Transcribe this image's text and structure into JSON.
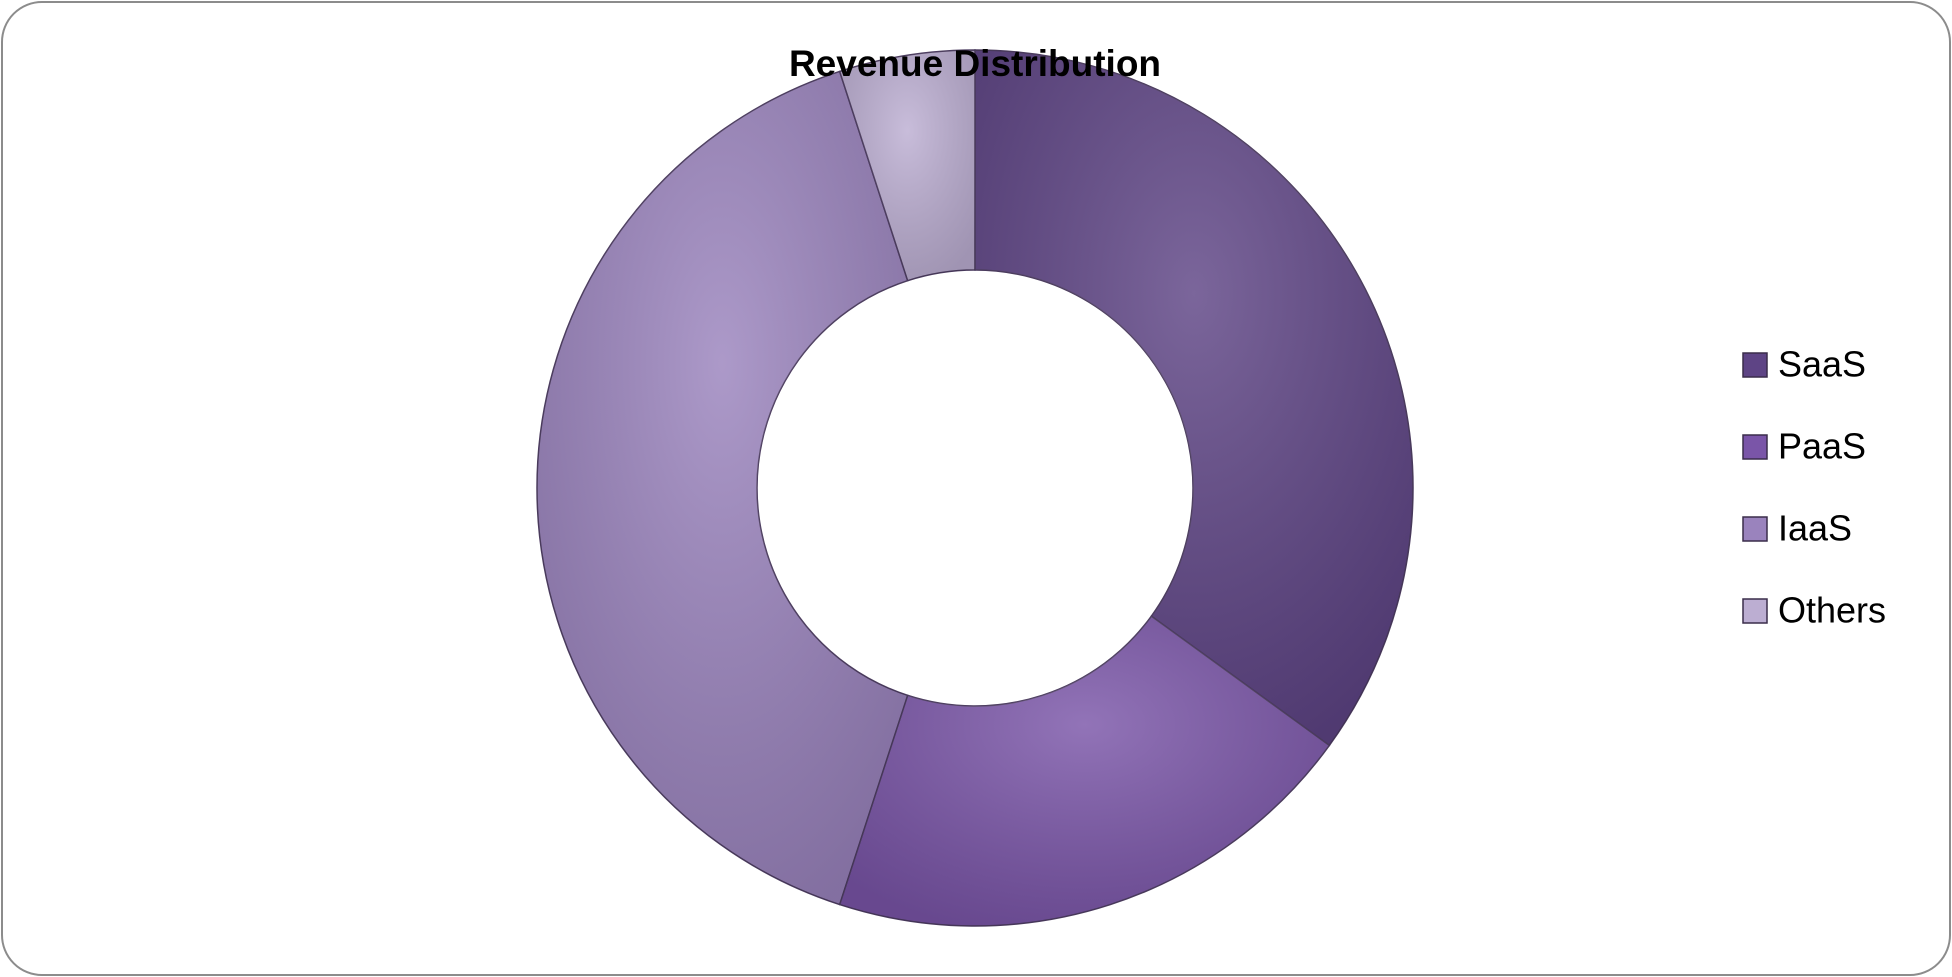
{
  "chart_data": {
    "type": "donut",
    "title": "Revenue Distribution",
    "categories": [
      "SaaS",
      "PaaS",
      "IaaS",
      "Others"
    ],
    "values": [
      35,
      20,
      40,
      5
    ],
    "colors": [
      "#5e4485",
      "#7a55a8",
      "#9a83bd",
      "#bcaed2"
    ],
    "legend": "right"
  }
}
